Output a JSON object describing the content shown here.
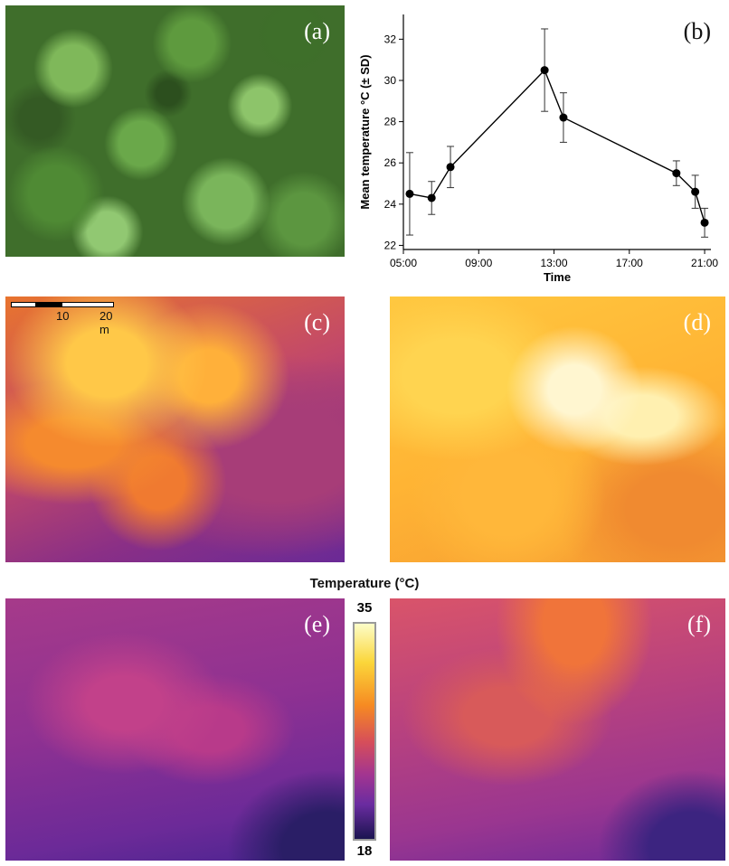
{
  "panels": {
    "a": "(a)",
    "b": "(b)",
    "c": "(c)",
    "d": "(d)",
    "e": "(e)",
    "f": "(f)"
  },
  "scale_bar": {
    "mid_label": "10",
    "end_label": "20 m"
  },
  "colorbar": {
    "title": "Temperature (°C)",
    "max": "35",
    "min": "18"
  },
  "chart_data": {
    "type": "line",
    "title": "",
    "xlabel": "Time",
    "ylabel": "Mean temperature °C (± SD)",
    "x_ticks": [
      "05:00",
      "09:00",
      "13:00",
      "17:00",
      "21:00"
    ],
    "y_ticks": [
      22,
      24,
      26,
      28,
      30,
      32
    ],
    "xlim": [
      "05:00",
      "21:20"
    ],
    "ylim": [
      21.8,
      33.2
    ],
    "grid": false,
    "series": [
      {
        "points": [
          {
            "x": "05:20",
            "y": 24.5,
            "sd": 2.0
          },
          {
            "x": "06:30",
            "y": 24.3,
            "sd": 0.8
          },
          {
            "x": "07:30",
            "y": 25.8,
            "sd": 1.0
          },
          {
            "x": "12:30",
            "y": 30.5,
            "sd": 2.0
          },
          {
            "x": "13:30",
            "y": 28.2,
            "sd": 1.2
          },
          {
            "x": "19:30",
            "y": 25.5,
            "sd": 0.6
          },
          {
            "x": "20:30",
            "y": 24.6,
            "sd": 0.8
          },
          {
            "x": "21:00",
            "y": 23.1,
            "sd": 0.7
          }
        ]
      }
    ]
  }
}
